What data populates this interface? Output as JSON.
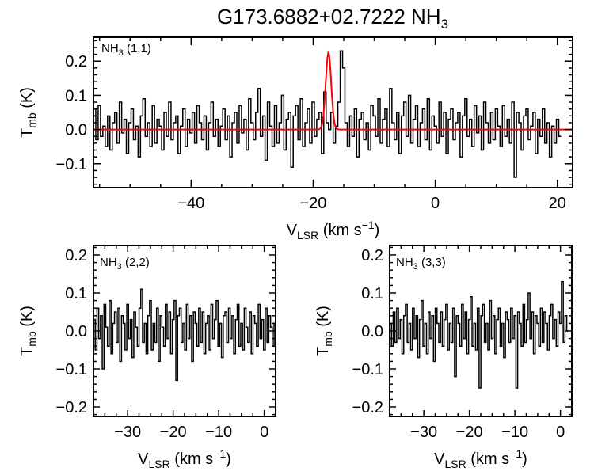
{
  "title": {
    "text": "G173.6882+02.7222 NH",
    "sub": "3"
  },
  "chart_data": [
    {
      "type": "line",
      "panel": "nh3-11",
      "label": {
        "main": "NH",
        "sub": "3",
        "rest": " (1,1)"
      },
      "xlim": [
        -56,
        22.5
      ],
      "ylim": [
        -0.17,
        0.27
      ],
      "xticks": [
        -40,
        -20,
        0,
        20
      ],
      "yticks": [
        -0.1,
        0.0,
        0.1,
        0.2
      ],
      "xlabel": {
        "main": "V",
        "sub": "LSR",
        "rest": " (km s",
        "sup": "−1",
        "end": ")"
      },
      "ylabel": {
        "main": "T",
        "sub": "mb",
        "rest": " (K)"
      },
      "spectrum_color": "#000000",
      "fit_color": "#ff0000",
      "fit": {
        "amplitude": 0.225,
        "center": -17.5,
        "sigma": 0.45
      },
      "x_start": -56,
      "x_step": 0.385,
      "values": [
        0.06,
        -0.03,
        0.07,
        -0.02,
        0.01,
        -0.05,
        0.04,
        -0.06,
        0.02,
        0.05,
        -0.04,
        0.08,
        -0.01,
        0.03,
        -0.07,
        0.02,
        0.06,
        -0.03,
        0.01,
        -0.08,
        0.04,
        0.09,
        -0.02,
        0.02,
        -0.05,
        0.07,
        -0.04,
        0.03,
        0.01,
        -0.06,
        0.05,
        -0.02,
        0.08,
        -0.03,
        0.02,
        0.04,
        -0.07,
        0.01,
        0.06,
        -0.05,
        0.03,
        -0.01,
        0.05,
        -0.04,
        0.07,
        0.02,
        -0.03,
        0.04,
        -0.06,
        0.02,
        0.08,
        -0.02,
        0.03,
        -0.05,
        0.01,
        0.06,
        -0.03,
        0.04,
        -0.08,
        0.02,
        0.05,
        -0.04,
        0.07,
        -0.01,
        0.03,
        -0.06,
        0.09,
        0.02,
        -0.03,
        0.05,
        0.12,
        -0.02,
        0.04,
        -0.09,
        0.08,
        0.01,
        -0.05,
        0.07,
        -0.04,
        0.02,
        0.1,
        -0.06,
        0.03,
        0.05,
        -0.11,
        0.04,
        0.07,
        -0.03,
        0.09,
        -0.05,
        0.02,
        0.06,
        -0.04,
        0.08,
        -0.02,
        0.03,
        0.05,
        -0.07,
        0.11,
        0.02,
        0.0,
        0.05,
        -0.04,
        0.01,
        0.08,
        0.23,
        0.18,
        0.02,
        -0.05,
        0.04,
        -0.02,
        0.06,
        -0.08,
        0.03,
        0.05,
        -0.03,
        0.02,
        -0.06,
        0.07,
        0.04,
        -0.02,
        0.09,
        -0.04,
        0.03,
        0.06,
        -0.05,
        0.12,
        0.02,
        -0.03,
        0.05,
        -0.07,
        0.04,
        0.08,
        -0.02,
        0.1,
        -0.04,
        0.03,
        0.07,
        -0.05,
        0.02,
        0.06,
        -0.03,
        0.09,
        -0.06,
        0.04,
        0.01,
        -0.04,
        0.08,
        -0.02,
        0.05,
        -0.07,
        0.03,
        0.06,
        -0.03,
        0.02,
        0.05,
        -0.08,
        0.04,
        0.09,
        -0.02,
        0.03,
        -0.05,
        0.07,
        -0.01,
        0.04,
        -0.06,
        0.08,
        0.02,
        -0.04,
        0.05,
        -0.03,
        0.06,
        0.01,
        -0.05,
        0.07,
        -0.02,
        0.03,
        -0.04,
        0.08,
        -0.14,
        0.05,
        0.02,
        -0.06,
        0.04,
        0.06,
        -0.03,
        0.01,
        0.05,
        -0.07,
        0.03,
        -0.02,
        0.06,
        -0.04,
        0.02,
        -0.08,
        0.01,
        -0.04,
        0.03,
        -0.02
      ]
    },
    {
      "type": "line",
      "panel": "nh3-22",
      "label": {
        "main": "NH",
        "sub": "3",
        "rest": " (2,2)"
      },
      "xlim": [
        -37.5,
        2.5
      ],
      "ylim": [
        -0.225,
        0.225
      ],
      "xticks": [
        -30,
        -20,
        -10,
        0
      ],
      "yticks": [
        -0.2,
        -0.1,
        0.0,
        0.1,
        0.2
      ],
      "xlabel": {
        "main": "V",
        "sub": "LSR",
        "rest": " (km s",
        "sup": "−1",
        "end": ")"
      },
      "ylabel": {
        "main": "T",
        "sub": "mb",
        "rest": " (K)"
      },
      "spectrum_color": "#000000",
      "x_start": -37.5,
      "x_step": 0.385,
      "values": [
        0.03,
        -0.05,
        0.06,
        -0.02,
        0.04,
        -0.1,
        0.07,
        0.01,
        -0.04,
        0.08,
        -0.06,
        0.02,
        0.05,
        -0.03,
        0.06,
        -0.08,
        0.04,
        0.02,
        -0.05,
        0.07,
        -0.02,
        0.03,
        -0.07,
        0.05,
        0.01,
        -0.04,
        0.06,
        0.11,
        -0.03,
        0.02,
        -0.06,
        0.04,
        0.08,
        -0.05,
        0.02,
        -0.03,
        0.06,
        -0.08,
        0.04,
        0.01,
        -0.04,
        0.07,
        -0.02,
        0.05,
        -0.06,
        0.03,
        0.08,
        -0.13,
        0.04,
        0.06,
        -0.03,
        0.02,
        -0.05,
        0.07,
        -0.02,
        0.04,
        -0.08,
        0.05,
        0.02,
        -0.04,
        0.06,
        -0.03,
        0.05,
        -0.06,
        0.02,
        0.04,
        -0.05,
        0.07,
        -0.02,
        0.03,
        0.08,
        -0.04,
        0.02,
        -0.07,
        0.04,
        0.05,
        -0.03,
        0.06,
        -0.02,
        0.04,
        -0.06,
        0.03,
        0.07,
        -0.04,
        0.02,
        -0.05,
        0.06,
        0.01,
        -0.03,
        0.05,
        -0.06,
        0.04,
        0.02,
        -0.04,
        0.07,
        -0.02,
        0.03,
        -0.05,
        0.06,
        -0.03,
        0.04,
        0.01,
        -0.04,
        0.02
      ]
    },
    {
      "type": "line",
      "panel": "nh3-33",
      "label": {
        "main": "NH",
        "sub": "3",
        "rest": " (3,3)"
      },
      "xlim": [
        -37.5,
        2.5
      ],
      "ylim": [
        -0.225,
        0.225
      ],
      "xticks": [
        -30,
        -20,
        -10,
        0
      ],
      "yticks": [
        -0.2,
        -0.1,
        0.0,
        0.1,
        0.2
      ],
      "xlabel": {
        "main": "V",
        "sub": "LSR",
        "rest": " (km s",
        "sup": "−1",
        "end": ")"
      },
      "ylabel": {
        "main": "T",
        "sub": "mb",
        "rest": " (K)"
      },
      "spectrum_color": "#000000",
      "x_start": -37.5,
      "x_step": 0.385,
      "values": [
        0.02,
        -0.04,
        0.05,
        -0.03,
        0.06,
        -0.02,
        0.03,
        -0.06,
        0.04,
        0.07,
        -0.03,
        0.02,
        -0.05,
        0.06,
        -0.02,
        0.04,
        -0.07,
        0.03,
        0.08,
        -0.04,
        0.02,
        -0.06,
        0.05,
        -0.02,
        0.04,
        -0.08,
        0.06,
        0.02,
        -0.03,
        0.05,
        -0.04,
        0.03,
        0.07,
        -0.05,
        0.02,
        -0.03,
        0.06,
        -0.12,
        0.04,
        0.02,
        -0.04,
        0.07,
        -0.02,
        0.05,
        -0.06,
        0.03,
        0.09,
        -0.04,
        0.02,
        -0.05,
        0.06,
        -0.15,
        0.04,
        0.07,
        -0.03,
        0.02,
        -0.05,
        0.08,
        -0.02,
        0.04,
        -0.06,
        0.03,
        0.06,
        -0.04,
        0.02,
        -0.07,
        0.05,
        0.03,
        -0.03,
        0.06,
        -0.02,
        0.04,
        -0.15,
        0.05,
        0.02,
        -0.04,
        0.07,
        -0.03,
        0.03,
        0.1,
        -0.02,
        0.05,
        -0.06,
        0.04,
        0.02,
        -0.04,
        0.06,
        -0.03,
        0.05,
        0.02,
        -0.05,
        0.04,
        0.07,
        -0.02,
        0.03,
        -0.04,
        0.05,
        0.02,
        0.13,
        -0.03,
        0.04,
        0.0
      ]
    }
  ]
}
